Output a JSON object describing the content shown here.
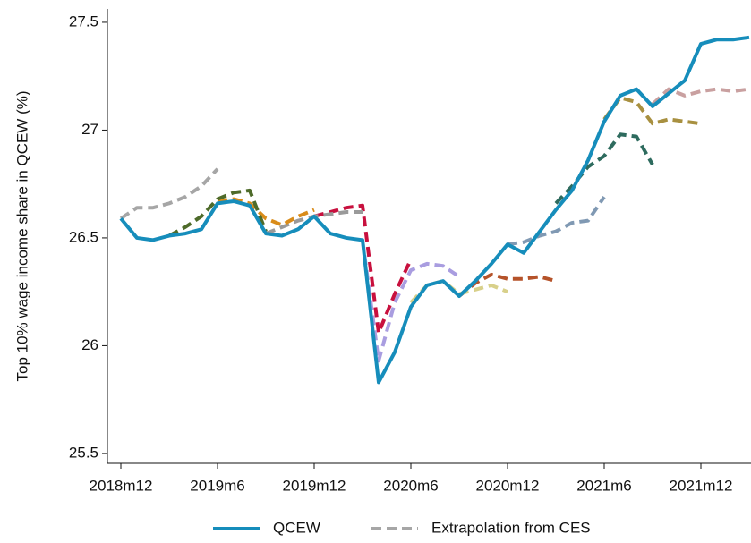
{
  "chart_data": {
    "type": "line",
    "y_label": "Top 10% wage income share in QCEW (%)",
    "categories": [
      "2018m12",
      null,
      null,
      null,
      null,
      null,
      "2019m6",
      null,
      null,
      null,
      null,
      null,
      "2019m12",
      null,
      null,
      null,
      null,
      null,
      "2020m6",
      null,
      null,
      null,
      null,
      null,
      "2020m12",
      null,
      null,
      null,
      null,
      null,
      "2021m6",
      null,
      null,
      null,
      null,
      null,
      "2021m12",
      null,
      null,
      null
    ],
    "ylim": [
      25.454,
      27.562
    ],
    "yticks": [
      25.5,
      26,
      26.5,
      27,
      27.5
    ],
    "series": [
      {
        "name": "QCEW",
        "color": "#168dbb",
        "style": "solid",
        "values": [
          26.59,
          26.5,
          26.49,
          26.51,
          26.52,
          26.54,
          26.66,
          26.67,
          26.65,
          26.52,
          26.51,
          26.54,
          26.6,
          26.52,
          26.5,
          26.49,
          25.83,
          25.97,
          26.18,
          26.28,
          26.3,
          26.23,
          26.3,
          26.38,
          26.47,
          26.43,
          26.53,
          26.63,
          26.72,
          26.86,
          27.04,
          27.16,
          27.19,
          27.11,
          27.17,
          27.23,
          27.4,
          27.42,
          27.42,
          27.43
        ]
      },
      {
        "name": "Extrapolation from CES",
        "color": "#a6a6a6",
        "style": "dashed",
        "values": [
          26.59,
          26.64,
          26.64,
          26.66,
          26.69,
          26.74,
          26.82,
          null,
          null,
          null,
          null,
          null,
          null,
          null,
          null,
          null,
          null,
          null,
          null,
          null,
          null,
          null,
          null,
          null,
          null,
          null,
          null,
          null,
          null,
          null,
          null,
          null,
          null,
          null,
          null,
          null,
          null,
          null,
          null,
          null
        ]
      },
      {
        "color": "#4e6b2a",
        "style": "dashed",
        "values": [
          null,
          null,
          null,
          26.51,
          26.55,
          26.6,
          26.68,
          26.71,
          26.72,
          26.53,
          null,
          null,
          null,
          null,
          null,
          null,
          null,
          null,
          null,
          null,
          null,
          null,
          null,
          null,
          null,
          null,
          null,
          null,
          null,
          null,
          null,
          null,
          null,
          null,
          null,
          null,
          null,
          null,
          null,
          null
        ]
      },
      {
        "color": "#d98c1a",
        "style": "dashed",
        "values": [
          null,
          null,
          null,
          null,
          null,
          null,
          26.67,
          26.68,
          26.66,
          26.59,
          26.56,
          26.6,
          26.63,
          null,
          null,
          null,
          null,
          null,
          null,
          null,
          null,
          null,
          null,
          null,
          null,
          null,
          null,
          null,
          null,
          null,
          null,
          null,
          null,
          null,
          null,
          null,
          null,
          null,
          null,
          null
        ]
      },
      {
        "color": "#9a9a9a",
        "style": "dashed",
        "values": [
          null,
          null,
          null,
          null,
          null,
          null,
          null,
          null,
          null,
          26.52,
          26.55,
          26.58,
          26.6,
          26.61,
          26.62,
          26.62,
          null,
          null,
          null,
          null,
          null,
          null,
          null,
          null,
          null,
          null,
          null,
          null,
          null,
          null,
          null,
          null,
          null,
          null,
          null,
          null,
          null,
          null,
          null,
          null
        ]
      },
      {
        "color": "#c8103e",
        "style": "dashed",
        "values": [
          null,
          null,
          null,
          null,
          null,
          null,
          null,
          null,
          null,
          null,
          null,
          null,
          26.6,
          26.62,
          26.64,
          26.65,
          26.06,
          26.24,
          26.4,
          null,
          null,
          null,
          null,
          null,
          null,
          null,
          null,
          null,
          null,
          null,
          null,
          null,
          null,
          null,
          null,
          null,
          null,
          null,
          null,
          null
        ]
      },
      {
        "color": "#a99de0",
        "style": "dashed",
        "values": [
          null,
          null,
          null,
          null,
          null,
          null,
          null,
          null,
          null,
          null,
          null,
          null,
          null,
          null,
          null,
          26.49,
          25.93,
          26.2,
          26.35,
          26.38,
          26.37,
          26.32,
          null,
          null,
          null,
          null,
          null,
          null,
          null,
          null,
          null,
          null,
          null,
          null,
          null,
          null,
          null,
          null,
          null,
          null
        ]
      },
      {
        "color": "#d8d08a",
        "style": "dashed",
        "values": [
          null,
          null,
          null,
          null,
          null,
          null,
          null,
          null,
          null,
          null,
          null,
          null,
          null,
          null,
          null,
          null,
          null,
          null,
          26.2,
          26.28,
          26.3,
          26.24,
          26.26,
          26.28,
          26.25,
          null,
          null,
          null,
          null,
          null,
          null,
          null,
          null,
          null,
          null,
          null,
          null,
          null,
          null,
          null
        ]
      },
      {
        "color": "#b5532a",
        "style": "dashed",
        "values": [
          null,
          null,
          null,
          null,
          null,
          null,
          null,
          null,
          null,
          null,
          null,
          null,
          null,
          null,
          null,
          null,
          null,
          null,
          null,
          null,
          null,
          26.23,
          26.29,
          26.33,
          26.31,
          26.31,
          26.32,
          26.3,
          null,
          null,
          null,
          null,
          null,
          null,
          null,
          null,
          null,
          null,
          null,
          null
        ]
      },
      {
        "color": "#8099b3",
        "style": "dashed",
        "values": [
          null,
          null,
          null,
          null,
          null,
          null,
          null,
          null,
          null,
          null,
          null,
          null,
          null,
          null,
          null,
          null,
          null,
          null,
          null,
          null,
          null,
          null,
          null,
          null,
          26.47,
          26.48,
          26.51,
          26.53,
          26.57,
          26.58,
          26.69,
          null,
          null,
          null,
          null,
          null,
          null,
          null,
          null,
          null
        ]
      },
      {
        "color": "#2e6b5e",
        "style": "dashed",
        "values": [
          null,
          null,
          null,
          null,
          null,
          null,
          null,
          null,
          null,
          null,
          null,
          null,
          null,
          null,
          null,
          null,
          null,
          null,
          null,
          null,
          null,
          null,
          null,
          null,
          null,
          null,
          null,
          26.66,
          26.74,
          26.83,
          26.88,
          26.98,
          26.97,
          26.84,
          null,
          null,
          null,
          null,
          null,
          null
        ]
      },
      {
        "color": "#a89040",
        "style": "dashed",
        "values": [
          null,
          null,
          null,
          null,
          null,
          null,
          null,
          null,
          null,
          null,
          null,
          null,
          null,
          null,
          null,
          null,
          null,
          null,
          null,
          null,
          null,
          null,
          null,
          null,
          null,
          null,
          null,
          null,
          null,
          null,
          27.05,
          27.15,
          27.13,
          27.03,
          27.05,
          27.04,
          27.03,
          null,
          null,
          null
        ]
      },
      {
        "color": "#c9a0a0",
        "style": "dashed",
        "values": [
          null,
          null,
          null,
          null,
          null,
          null,
          null,
          null,
          null,
          null,
          null,
          null,
          null,
          null,
          null,
          null,
          null,
          null,
          null,
          null,
          null,
          null,
          null,
          null,
          null,
          null,
          null,
          null,
          null,
          null,
          null,
          null,
          null,
          27.12,
          27.19,
          27.16,
          27.18,
          27.19,
          27.18,
          27.19
        ]
      }
    ]
  }
}
